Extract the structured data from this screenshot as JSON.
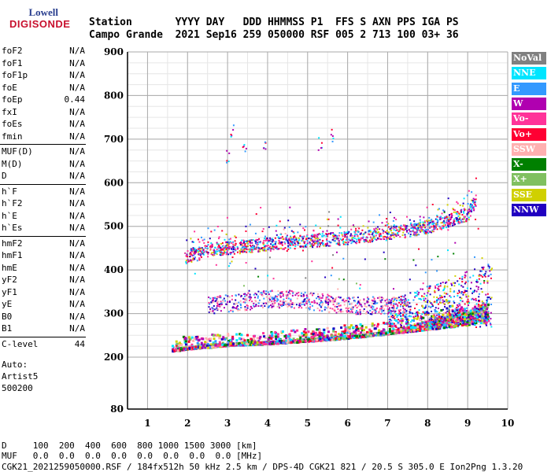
{
  "logo": {
    "top": "Lowell",
    "bottom": "DIGISONDE"
  },
  "header": {
    "labels": "Station       YYYY DAY   DDD HHMMSS P1  FFS S AXN PPS IGA PS",
    "values": "Campo Grande  2021 Sep16 259 050000 RSF 005 2 713 100 03+ 36"
  },
  "params": [
    {
      "name": "foF2",
      "value": "N/A"
    },
    {
      "name": "foF1",
      "value": "N/A"
    },
    {
      "name": "foF1p",
      "value": "N/A"
    },
    {
      "name": "foE",
      "value": "N/A"
    },
    {
      "name": "foEp",
      "value": "0.44"
    },
    {
      "name": "fxI",
      "value": "N/A"
    },
    {
      "name": "foEs",
      "value": "N/A"
    },
    {
      "name": "fmin",
      "value": "N/A"
    },
    {
      "name": "MUF(D)",
      "value": "N/A"
    },
    {
      "name": "M(D)",
      "value": "N/A"
    },
    {
      "name": "D",
      "value": "N/A"
    },
    {
      "name": "h`F",
      "value": "N/A"
    },
    {
      "name": "h`F2",
      "value": "N/A"
    },
    {
      "name": "h`E",
      "value": "N/A"
    },
    {
      "name": "h`Es",
      "value": "N/A"
    },
    {
      "name": "hmF2",
      "value": "N/A"
    },
    {
      "name": "hmF1",
      "value": "N/A"
    },
    {
      "name": "hmE",
      "value": "N/A"
    },
    {
      "name": "yF2",
      "value": "N/A"
    },
    {
      "name": "yF1",
      "value": "N/A"
    },
    {
      "name": "yE",
      "value": "N/A"
    },
    {
      "name": "B0",
      "value": "N/A"
    },
    {
      "name": "B1",
      "value": "N/A"
    },
    {
      "name": "C-level",
      "value": "44"
    }
  ],
  "auto": {
    "line1": "Auto:",
    "line2": "Artist5",
    "line3": "500200"
  },
  "legend": [
    {
      "label": "NoVal",
      "color": "#808080"
    },
    {
      "label": "NNE",
      "color": "#00e5ff"
    },
    {
      "label": "E",
      "color": "#3399ff"
    },
    {
      "label": "W",
      "color": "#b000b0"
    },
    {
      "label": "Vo-",
      "color": "#ff3399"
    },
    {
      "label": "Vo+",
      "color": "#ff0033"
    },
    {
      "label": "SSW",
      "color": "#ffb0b0"
    },
    {
      "label": "X-",
      "color": "#008000"
    },
    {
      "label": "X+",
      "color": "#80c060"
    },
    {
      "label": "SSE",
      "color": "#d0d000"
    },
    {
      "label": "NNW",
      "color": "#2000c0"
    }
  ],
  "footer": {
    "line1": "D     100  200  400  600  800 1000 1500 3000 [km]",
    "line2": "MUF   0.0  0.0  0.0  0.0  0.0  0.0  0.0  0.0 [MHz]",
    "line3": "CGK21_2021259050000.RSF / 184fx512h 50 kHz 2.5 km / DPS-4D CGK21 821 / 20.5 S 305.0 E Ion2Png 1.3.20"
  },
  "chart_data": {
    "type": "scatter",
    "xlabel": "",
    "ylabel": "",
    "xlim": [
      0.5,
      10
    ],
    "ylim": [
      80,
      900
    ],
    "x_ticks": [
      1,
      2,
      3,
      4,
      5,
      6,
      7,
      8,
      9,
      10
    ],
    "y_ticks": [
      80,
      200,
      300,
      400,
      500,
      600,
      700,
      800,
      900
    ],
    "grid": true,
    "legend_placement": "right",
    "traces": [
      {
        "name": "E/F1 layer trace (lower)",
        "x": [
          1.6,
          2.0,
          3.0,
          4.0,
          5.0,
          6.0,
          7.0,
          8.0,
          9.0,
          9.5
        ],
        "y": [
          215,
          220,
          228,
          232,
          238,
          245,
          255,
          265,
          275,
          283
        ]
      },
      {
        "name": "F2 layer trace",
        "x": [
          1.9,
          2.5,
          3.0,
          4.0,
          5.0,
          6.0,
          7.0,
          8.0,
          9.0,
          9.2
        ],
        "y": [
          430,
          445,
          452,
          460,
          468,
          475,
          485,
          500,
          530,
          560
        ]
      },
      {
        "name": "Spread returns",
        "x": [
          2.5,
          3.0,
          3.5,
          4.0,
          4.5,
          5.0,
          5.5,
          6.0
        ],
        "y": [
          320,
          325,
          330,
          335,
          335,
          330,
          325,
          320
        ]
      },
      {
        "name": "High scatter",
        "x": [
          3.0,
          3.1,
          3.4,
          3.9,
          5.3,
          5.6
        ],
        "y": [
          660,
          720,
          680,
          680,
          690,
          710
        ]
      }
    ]
  }
}
